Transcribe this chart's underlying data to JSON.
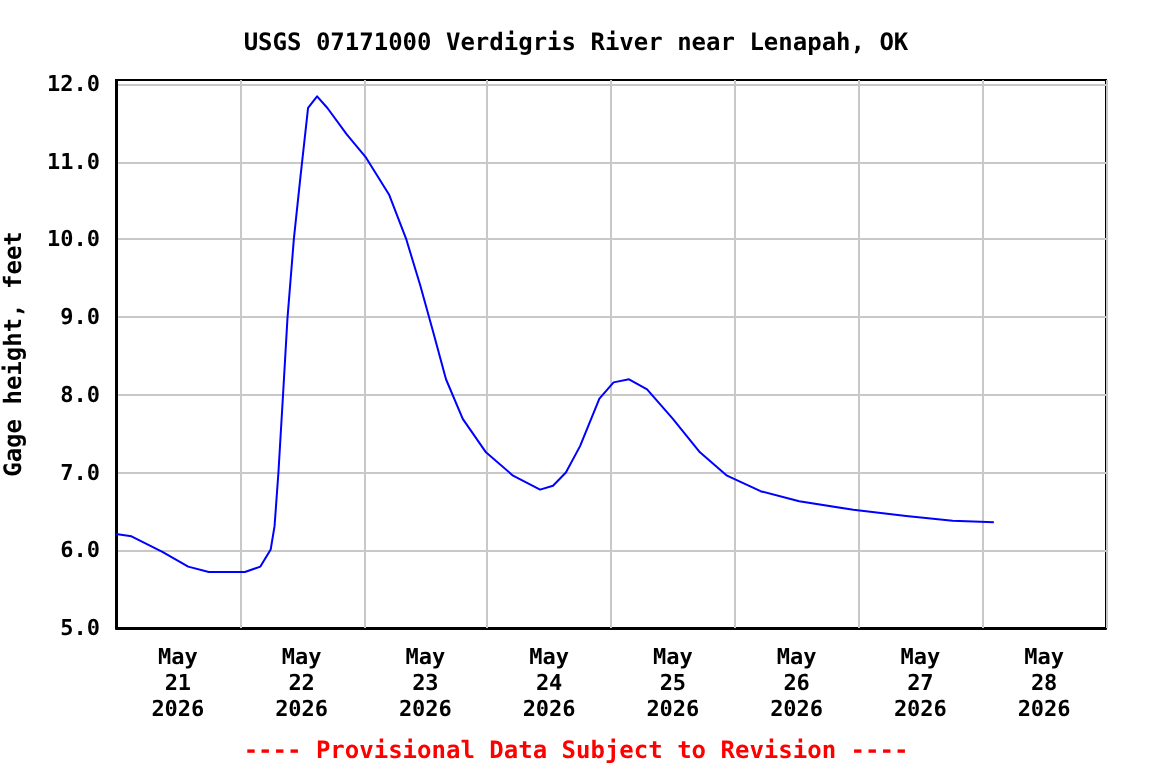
{
  "chart_data": {
    "type": "line",
    "title": "USGS 07171000 Verdigris River near Lenapah, OK",
    "ylabel": "Gage height, feet",
    "annotations": [
      "---- Provisional Data Subject to Revision ----"
    ],
    "x": [
      "2026-05-21T00:00",
      "2026-05-21T03:00",
      "2026-05-21T09:00",
      "2026-05-21T14:00",
      "2026-05-21T18:00",
      "2026-05-22T01:00",
      "2026-05-22T04:00",
      "2026-05-22T06:00",
      "2026-05-22T06:45",
      "2026-05-22T07:30",
      "2026-05-22T08:30",
      "2026-05-22T09:15",
      "2026-05-22T10:30",
      "2026-05-22T11:45",
      "2026-05-22T13:15",
      "2026-05-22T15:00",
      "2026-05-22T17:00",
      "2026-05-22T20:45",
      "2026-05-23T00:30",
      "2026-05-23T05:00",
      "2026-05-23T08:15",
      "2026-05-23T11:00",
      "2026-05-23T13:30",
      "2026-05-23T16:00",
      "2026-05-23T19:15",
      "2026-05-23T23:45",
      "2026-05-24T05:00",
      "2026-05-24T10:15",
      "2026-05-24T12:45",
      "2026-05-24T15:15",
      "2026-05-24T18:00",
      "2026-05-24T21:45",
      "2026-05-25T00:30",
      "2026-05-25T03:30",
      "2026-05-25T07:00",
      "2026-05-25T12:00",
      "2026-05-25T17:15",
      "2026-05-25T22:30",
      "2026-05-26T05:00",
      "2026-05-26T12:30",
      "2026-05-26T23:00",
      "2026-05-27T09:15",
      "2026-05-27T18:15",
      "2026-05-28T02:15"
    ],
    "series": [
      {
        "color": "#0000ff",
        "values": [
          6.21,
          6.18,
          5.98,
          5.79,
          5.72,
          5.72,
          5.79,
          6.01,
          6.31,
          7.0,
          8.12,
          8.98,
          10.01,
          10.79,
          11.69,
          11.84,
          11.69,
          11.35,
          11.05,
          10.57,
          10.01,
          9.41,
          8.81,
          8.2,
          7.69,
          7.26,
          6.96,
          6.78,
          6.83,
          7.0,
          7.34,
          7.95,
          8.16,
          8.2,
          8.07,
          7.69,
          7.26,
          6.96,
          6.76,
          6.63,
          6.52,
          6.44,
          6.38,
          6.36
        ]
      }
    ],
    "xlim": [
      "2026-05-21T00:00",
      "2026-05-29T00:00"
    ],
    "xticks": [
      {
        "value": "2026-05-21T00:00",
        "label": null
      },
      {
        "value": "2026-05-21T12:00",
        "label": "May\n21\n2026"
      },
      {
        "value": "2026-05-22T00:00",
        "label": null
      },
      {
        "value": "2026-05-22T12:00",
        "label": "May\n22\n2026"
      },
      {
        "value": "2026-05-23T00:00",
        "label": null
      },
      {
        "value": "2026-05-23T12:00",
        "label": "May\n23\n2026"
      },
      {
        "value": "2026-05-24T00:00",
        "label": null
      },
      {
        "value": "2026-05-24T12:00",
        "label": "May\n24\n2026"
      },
      {
        "value": "2026-05-25T00:00",
        "label": null
      },
      {
        "value": "2026-05-25T12:00",
        "label": "May\n25\n2026"
      },
      {
        "value": "2026-05-26T00:00",
        "label": null
      },
      {
        "value": "2026-05-26T12:00",
        "label": "May\n26\n2026"
      },
      {
        "value": "2026-05-27T00:00",
        "label": null
      },
      {
        "value": "2026-05-27T12:00",
        "label": "May\n27\n2026"
      },
      {
        "value": "2026-05-28T00:00",
        "label": null
      },
      {
        "value": "2026-05-28T12:00",
        "label": "May\n28\n2026"
      },
      {
        "value": "2026-05-29T00:00",
        "label": null
      }
    ],
    "ylim": [
      5,
      12.05
    ],
    "yticks": [
      {
        "value": 5,
        "label": "5.0"
      },
      {
        "value": 6,
        "label": "6.0"
      },
      {
        "value": 7,
        "label": "7.0"
      },
      {
        "value": 8,
        "label": "8.0"
      },
      {
        "value": 9,
        "label": "9.0"
      },
      {
        "value": 10,
        "label": "10.0"
      },
      {
        "value": 11,
        "label": "11.0"
      },
      {
        "value": 12,
        "label": "12.0"
      }
    ],
    "grid": true,
    "marker": "none",
    "line_style": "solid"
  }
}
